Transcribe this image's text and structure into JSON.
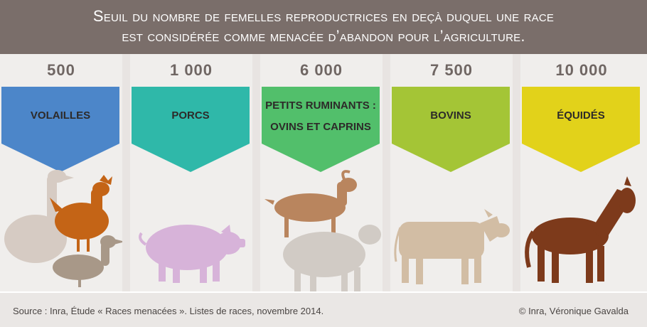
{
  "header": {
    "title_line1": "Seuil du nombre de femelles reproductrices en deçà duquel une race",
    "title_line2": "est considérée comme menacée d’abandon pour l’agriculture."
  },
  "columns": [
    {
      "value": "500",
      "label": "VOLAILLES",
      "color": "#4c86c9",
      "icon": "poultry-icon"
    },
    {
      "value": "1 000",
      "label": "PORCS",
      "color": "#2fb8a9",
      "icon": "pig-icon"
    },
    {
      "value": "6 000",
      "label_line1": "PETITS RUMINANTS :",
      "label_line2": "OVINS ET CAPRINS",
      "color": "#52bf6b",
      "icon": "goat-sheep-icon"
    },
    {
      "value": "7 500",
      "label": "BOVINS",
      "color": "#a4c536",
      "icon": "cow-icon"
    },
    {
      "value": "10 000",
      "label": "ÉQUIDÉS",
      "color": "#e2d21a",
      "icon": "horse-icon"
    }
  ],
  "footer": {
    "source": "Source : Inra, Étude « Races menacées ». Listes de races, novembre 2014.",
    "credit": "© Inra, Véronique Gavalda"
  }
}
